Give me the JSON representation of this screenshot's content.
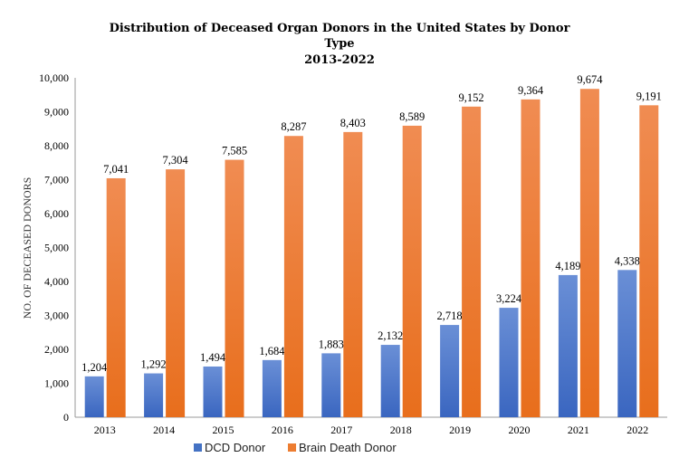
{
  "chart_data": {
    "type": "bar",
    "title": [
      "Distribution of Deceased Organ Donors in the United States by Donor",
      "Type",
      "2013-2022"
    ],
    "xlabel": "",
    "ylabel": "NO. OF DECEASED DONORS",
    "ylim": [
      0,
      10000
    ],
    "yticks": [
      "0",
      "1,000",
      "2,000",
      "3,000",
      "4,000",
      "5,000",
      "6,000",
      "7,000",
      "8,000",
      "9,000",
      "10,000"
    ],
    "categories": [
      "2013",
      "2014",
      "2015",
      "2016",
      "2017",
      "2018",
      "2019",
      "2020",
      "2021",
      "2022"
    ],
    "series": [
      {
        "name": "DCD Donor",
        "color": "#4472C4",
        "values": [
          1204,
          1292,
          1494,
          1684,
          1883,
          2132,
          2718,
          3224,
          4189,
          4338
        ],
        "labels": [
          "1,204",
          "1,292",
          "1,494",
          "1,684",
          "1,883",
          "2,132",
          "2,718",
          "3,224",
          "4,189",
          "4,338"
        ]
      },
      {
        "name": "Brain Death Donor",
        "color": "#ED7D31",
        "values": [
          7041,
          7304,
          7585,
          8287,
          8403,
          8589,
          9152,
          9364,
          9674,
          9191
        ],
        "labels": [
          "7,041",
          "7,304",
          "7,585",
          "8,287",
          "8,403",
          "8,589",
          "9,152",
          "9,364",
          "9,674",
          "9,191"
        ]
      }
    ],
    "grid": false,
    "legend": "bottom"
  }
}
